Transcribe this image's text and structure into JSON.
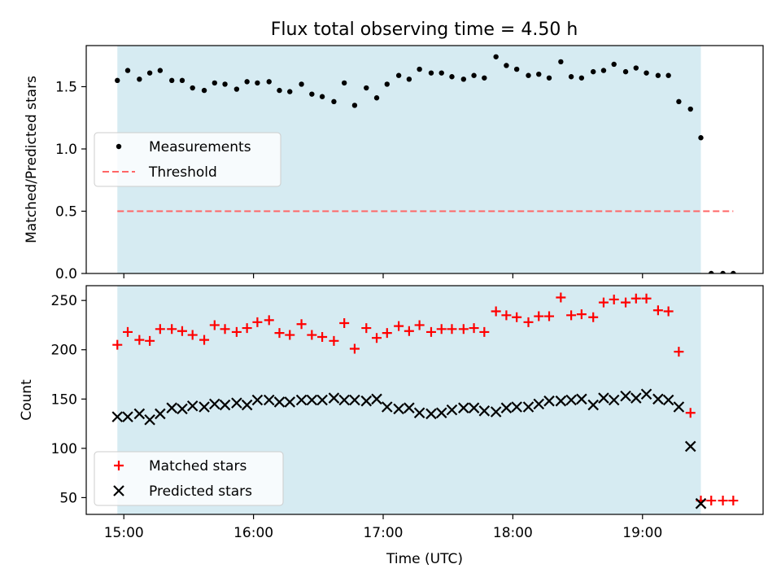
{
  "title": "Flux total observing time = 4.50 h",
  "colors": {
    "shade": "#add8e6",
    "matched": "#ff0000",
    "predicted": "#000000",
    "threshold": "#ff6666",
    "measure": "#000000"
  },
  "chart_data": [
    {
      "type": "scatter",
      "ylabel": "Matched/Predicted stars",
      "xlim": [
        14.71,
        19.93
      ],
      "ylim": [
        0,
        1.83
      ],
      "yticks": [
        "0.0",
        "0.5",
        "1.0",
        "1.5"
      ],
      "ytick_values": [
        0,
        0.5,
        1.0,
        1.5
      ],
      "shaded_span": [
        14.95,
        19.45
      ],
      "legend": {
        "position": "center-left",
        "entries": [
          "Measurements",
          "Threshold"
        ]
      },
      "threshold": {
        "name": "Threshold",
        "y": 0.5,
        "x_range": [
          14.95,
          19.7
        ]
      },
      "series": [
        {
          "name": "Measurements",
          "x": [
            14.95,
            15.03,
            15.12,
            15.2,
            15.28,
            15.37,
            15.45,
            15.53,
            15.62,
            15.7,
            15.78,
            15.87,
            15.95,
            16.03,
            16.12,
            16.2,
            16.28,
            16.37,
            16.45,
            16.53,
            16.62,
            16.7,
            16.78,
            16.87,
            16.95,
            17.03,
            17.12,
            17.2,
            17.28,
            17.37,
            17.45,
            17.53,
            17.62,
            17.7,
            17.78,
            17.87,
            17.95,
            18.03,
            18.12,
            18.2,
            18.28,
            18.37,
            18.45,
            18.53,
            18.62,
            18.7,
            18.78,
            18.87,
            18.95,
            19.03,
            19.12,
            19.2,
            19.28,
            19.37,
            19.45,
            19.53,
            19.62,
            19.7
          ],
          "y": [
            1.55,
            1.63,
            1.56,
            1.61,
            1.63,
            1.55,
            1.55,
            1.49,
            1.47,
            1.53,
            1.52,
            1.48,
            1.54,
            1.53,
            1.54,
            1.47,
            1.46,
            1.52,
            1.44,
            1.42,
            1.38,
            1.53,
            1.35,
            1.49,
            1.41,
            1.52,
            1.59,
            1.56,
            1.64,
            1.61,
            1.61,
            1.58,
            1.56,
            1.59,
            1.57,
            1.74,
            1.67,
            1.64,
            1.59,
            1.6,
            1.57,
            1.7,
            1.58,
            1.57,
            1.62,
            1.63,
            1.68,
            1.62,
            1.65,
            1.61,
            1.59,
            1.59,
            1.38,
            1.32,
            1.09,
            0.0,
            0.0,
            0.0
          ]
        }
      ]
    },
    {
      "type": "scatter",
      "ylabel": "Count",
      "xlabel": "Time (UTC)",
      "xlim": [
        14.71,
        19.93
      ],
      "ylim": [
        33,
        265
      ],
      "yticks": [
        "50",
        "100",
        "150",
        "200",
        "250"
      ],
      "ytick_values": [
        50,
        100,
        150,
        200,
        250
      ],
      "xticks": [
        "15:00",
        "16:00",
        "17:00",
        "18:00",
        "19:00"
      ],
      "xtick_values": [
        15,
        16,
        17,
        18,
        19
      ],
      "shaded_span": [
        14.95,
        19.45
      ],
      "legend": {
        "position": "bottom-left",
        "entries": [
          "Matched stars",
          "Predicted stars"
        ]
      },
      "series": [
        {
          "name": "Matched stars",
          "marker": "plus",
          "x": [
            14.95,
            15.03,
            15.12,
            15.2,
            15.28,
            15.37,
            15.45,
            15.53,
            15.62,
            15.7,
            15.78,
            15.87,
            15.95,
            16.03,
            16.12,
            16.2,
            16.28,
            16.37,
            16.45,
            16.53,
            16.62,
            16.7,
            16.78,
            16.87,
            16.95,
            17.03,
            17.12,
            17.2,
            17.28,
            17.37,
            17.45,
            17.53,
            17.62,
            17.7,
            17.78,
            17.87,
            17.95,
            18.03,
            18.12,
            18.2,
            18.28,
            18.37,
            18.45,
            18.53,
            18.62,
            18.7,
            18.78,
            18.87,
            18.95,
            19.03,
            19.12,
            19.2,
            19.28,
            19.37,
            19.45,
            19.53,
            19.62,
            19.7
          ],
          "y": [
            205,
            218,
            210,
            209,
            221,
            221,
            219,
            215,
            210,
            225,
            221,
            218,
            222,
            228,
            230,
            217,
            215,
            226,
            215,
            213,
            209,
            227,
            201,
            222,
            212,
            217,
            224,
            219,
            225,
            218,
            221,
            221,
            221,
            222,
            218,
            239,
            235,
            233,
            228,
            234,
            234,
            253,
            235,
            236,
            233,
            248,
            251,
            248,
            252,
            252,
            240,
            239,
            198,
            136,
            47,
            47,
            47,
            47
          ]
        },
        {
          "name": "Predicted stars",
          "marker": "x",
          "x": [
            14.95,
            15.03,
            15.12,
            15.2,
            15.28,
            15.37,
            15.45,
            15.53,
            15.62,
            15.7,
            15.78,
            15.87,
            15.95,
            16.03,
            16.12,
            16.2,
            16.28,
            16.37,
            16.45,
            16.53,
            16.62,
            16.7,
            16.78,
            16.87,
            16.95,
            17.03,
            17.12,
            17.2,
            17.28,
            17.37,
            17.45,
            17.53,
            17.62,
            17.7,
            17.78,
            17.87,
            17.95,
            18.03,
            18.12,
            18.2,
            18.28,
            18.37,
            18.45,
            18.53,
            18.62,
            18.7,
            18.78,
            18.87,
            18.95,
            19.03,
            19.12,
            19.2,
            19.28,
            19.37,
            19.45
          ],
          "y": [
            132,
            132,
            135,
            129,
            135,
            141,
            140,
            143,
            142,
            145,
            144,
            146,
            144,
            149,
            149,
            147,
            147,
            149,
            149,
            149,
            151,
            149,
            149,
            148,
            150,
            142,
            140,
            141,
            136,
            135,
            136,
            139,
            141,
            141,
            138,
            137,
            141,
            142,
            142,
            145,
            148,
            148,
            149,
            150,
            144,
            151,
            149,
            153,
            151,
            155,
            150,
            149,
            142,
            102,
            44
          ]
        }
      ]
    }
  ]
}
